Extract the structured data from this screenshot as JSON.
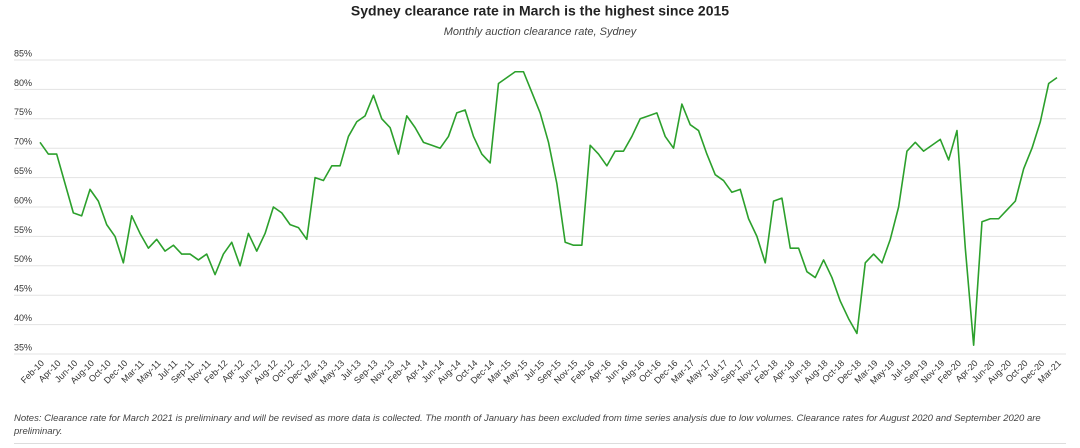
{
  "chart_data": {
    "type": "line",
    "title": "Sydney clearance rate in March is the highest since 2015",
    "subtitle": "Monthly auction clearance rate, Sydney",
    "categories": [
      "Feb-10",
      null,
      "Apr-10",
      null,
      "Jun-10",
      null,
      "Aug-10",
      null,
      "Oct-10",
      null,
      "Dec-10",
      null,
      "Mar-11",
      null,
      "May-11",
      null,
      "Jul-11",
      null,
      "Sep-11",
      null,
      "Nov-11",
      null,
      "Feb-12",
      null,
      "Apr-12",
      null,
      "Jun-12",
      null,
      "Aug-12",
      null,
      "Oct-12",
      null,
      "Dec-12",
      null,
      "Mar-13",
      null,
      "May-13",
      null,
      "Jul-13",
      null,
      "Sep-13",
      null,
      "Nov-13",
      null,
      "Feb-14",
      null,
      "Apr-14",
      null,
      "Jun-14",
      null,
      "Aug-14",
      null,
      "Oct-14",
      null,
      "Dec-14",
      null,
      "Mar-15",
      null,
      "May-15",
      null,
      "Jul-15",
      null,
      "Sep-15",
      null,
      "Nov-15",
      null,
      "Feb-16",
      null,
      "Apr-16",
      null,
      "Jun-16",
      null,
      "Aug-16",
      null,
      "Oct-16",
      null,
      "Dec-16",
      null,
      "Mar-17",
      null,
      "May-17",
      null,
      "Jul-17",
      null,
      "Sep-17",
      null,
      "Nov-17",
      null,
      "Feb-18",
      null,
      "Apr-18",
      null,
      "Jun-18",
      null,
      "Aug-18",
      null,
      "Oct-18",
      null,
      "Dec-18",
      null,
      "Mar-19",
      null,
      "May-19",
      null,
      "Jul-19",
      null,
      "Sep-19",
      null,
      "Nov-19",
      null,
      "Feb-20",
      null,
      "Apr-20",
      null,
      "Jun-20",
      null,
      "Aug-20",
      null,
      "Oct-20",
      null,
      "Dec-20",
      null,
      "Mar-21"
    ],
    "series": [
      {
        "name": "Clearance rate",
        "color": "#2ca02c",
        "values": [
          71,
          69,
          69,
          64,
          59,
          58.5,
          63,
          61,
          57,
          55,
          50.5,
          58.5,
          55.5,
          53,
          54.5,
          52.5,
          53.5,
          52,
          52,
          51,
          52,
          48.5,
          52,
          54,
          50,
          55.5,
          52.5,
          55.5,
          60,
          59,
          57,
          56.5,
          54.5,
          65,
          64.5,
          67,
          67,
          72,
          74.5,
          75.5,
          79,
          75,
          73.5,
          69,
          75.5,
          73.5,
          71,
          70.5,
          70,
          72,
          76,
          76.5,
          72,
          69,
          67.5,
          81,
          82,
          83,
          83,
          79.5,
          76,
          71,
          64,
          54,
          53.5,
          53.5,
          70.5,
          69,
          67,
          69.5,
          69.5,
          72,
          75,
          75.5,
          76,
          72,
          70,
          77.5,
          74,
          73,
          69,
          65.5,
          64.5,
          62.5,
          63,
          58,
          55,
          50.5,
          61,
          61.5,
          53,
          53,
          49,
          48,
          51,
          48,
          44,
          41,
          38.5,
          50.5,
          52,
          50.5,
          54.5,
          60,
          69.5,
          71,
          69.5,
          70.5,
          71.5,
          68,
          73,
          53,
          36.5,
          57.5,
          58,
          58,
          59.5,
          61,
          66.5,
          70,
          74.5,
          81,
          82
        ]
      }
    ],
    "ylim": [
      35,
      85
    ],
    "yticks": [
      {
        "value": 35,
        "label": "35%"
      },
      {
        "value": 40,
        "label": "40%"
      },
      {
        "value": 45,
        "label": "45%"
      },
      {
        "value": 50,
        "label": "50%"
      },
      {
        "value": 55,
        "label": "55%"
      },
      {
        "value": 60,
        "label": "60%"
      },
      {
        "value": 65,
        "label": "65%"
      },
      {
        "value": 70,
        "label": "70%"
      },
      {
        "value": 75,
        "label": "75%"
      },
      {
        "value": 80,
        "label": "80%"
      },
      {
        "value": 85,
        "label": "85%"
      }
    ],
    "grid": true,
    "notes": "Notes: Clearance rate for March 2021 is preliminary and will be revised as more data is collected. The month of January has been excluded from time series analysis due to low volumes. Clearance rates for August 2020 and September 2020 are preliminary."
  }
}
